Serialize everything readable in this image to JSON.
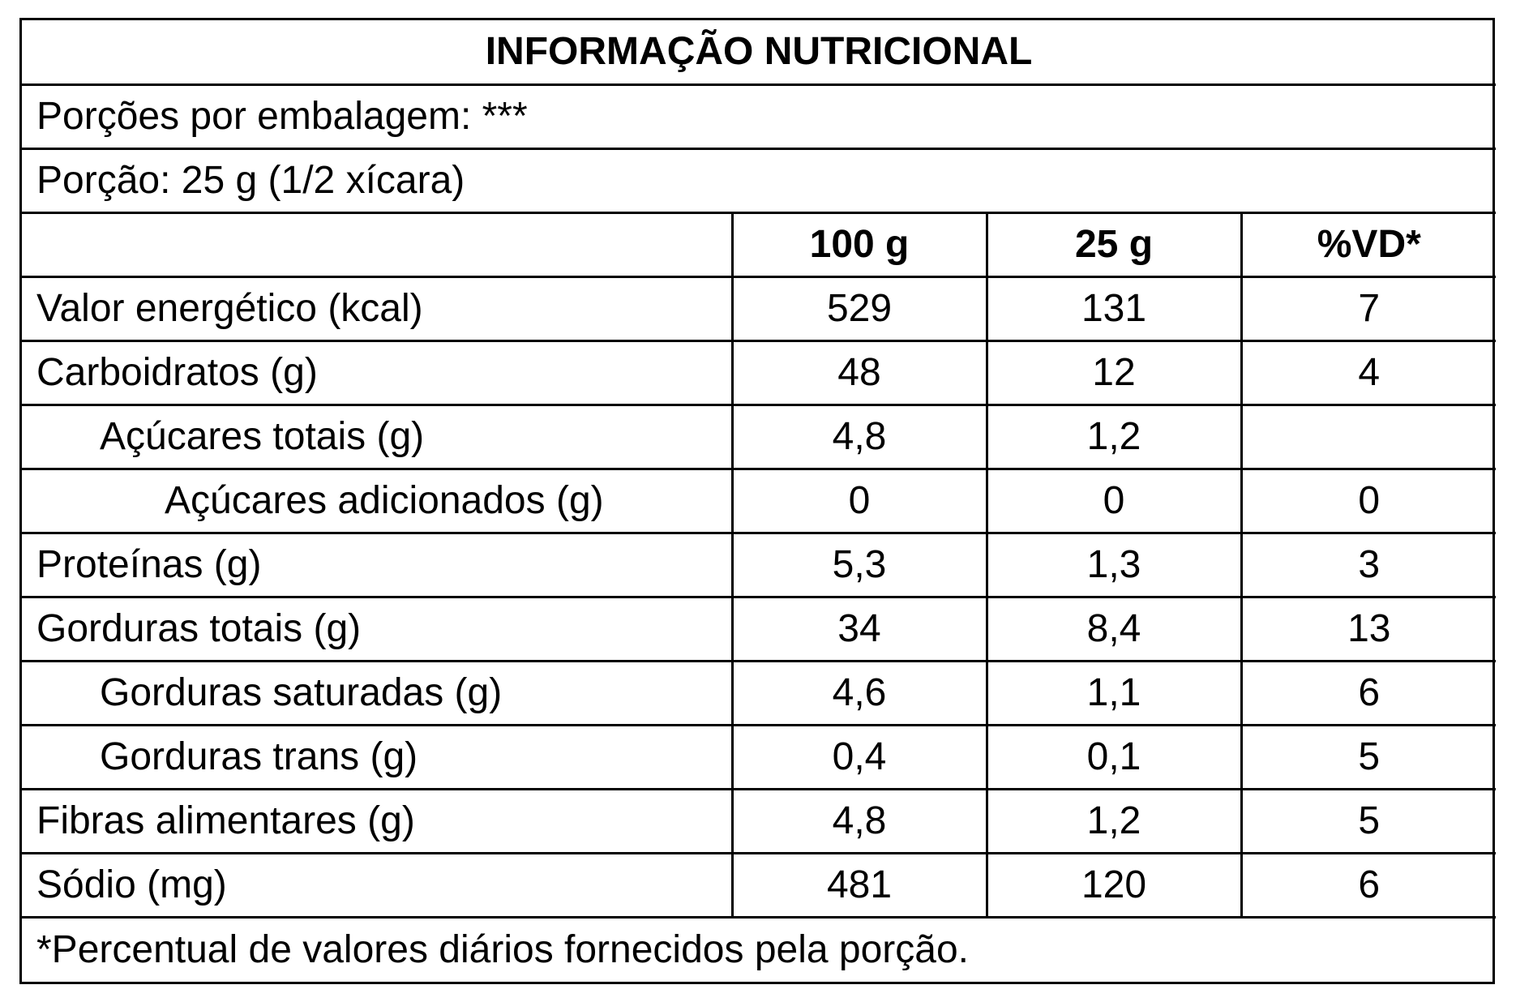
{
  "table": {
    "title": "INFORMAÇÃO NUTRICIONAL",
    "servings_per_package": "Porções por embalagem: ***",
    "serving_size": "Porção: 25 g (1/2 xícara)",
    "columns": [
      "100 g",
      "25 g",
      "%VD*"
    ],
    "rows": [
      {
        "label": "Valor energético (kcal)",
        "per_100g": "529",
        "per_serving": "131",
        "dv": "7"
      },
      {
        "label": "Carboidratos (g)",
        "per_100g": "48",
        "per_serving": "12",
        "dv": "4"
      },
      {
        "label": "Açúcares totais (g)",
        "per_100g": "4,8",
        "per_serving": "1,2",
        "dv": ""
      },
      {
        "label": "Açúcares adicionados (g)",
        "per_100g": "0",
        "per_serving": "0",
        "dv": "0"
      },
      {
        "label": "Proteínas (g)",
        "per_100g": "5,3",
        "per_serving": "1,3",
        "dv": "3"
      },
      {
        "label": "Gorduras totais (g)",
        "per_100g": "34",
        "per_serving": "8,4",
        "dv": "13"
      },
      {
        "label": "Gorduras saturadas (g)",
        "per_100g": "4,6",
        "per_serving": "1,1",
        "dv": "6"
      },
      {
        "label": "Gorduras trans (g)",
        "per_100g": "0,4",
        "per_serving": "0,1",
        "dv": "5"
      },
      {
        "label": "Fibras alimentares (g)",
        "per_100g": "4,8",
        "per_serving": "1,2",
        "dv": "5"
      },
      {
        "label": "Sódio (mg)",
        "per_100g": "481",
        "per_serving": "120",
        "dv": "6"
      }
    ],
    "footnote": "*Percentual de valores diários fornecidos pela porção."
  }
}
